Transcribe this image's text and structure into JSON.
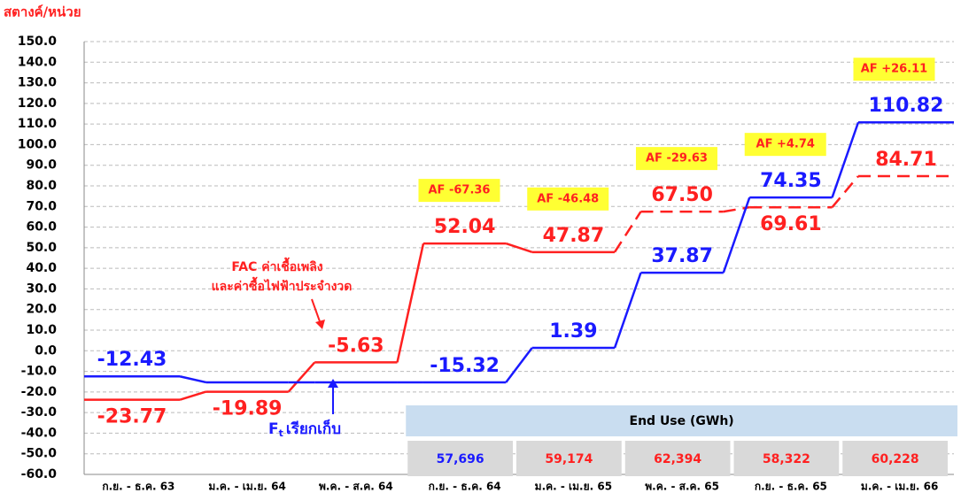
{
  "chart_data": {
    "type": "step-line",
    "y_axis_label": "สตางค์/หน่วย",
    "categories": [
      "ก.ย. - ธ.ค. 63",
      "ม.ค. - เม.ย. 64",
      "พ.ค. - ส.ค. 64",
      "ก.ย. - ธ.ค. 64",
      "ม.ค. - เม.ย. 65",
      "พ.ค. - ส.ค. 65",
      "ก.ย. - ธ.ค. 65",
      "ม.ค. - เม.ย. 66"
    ],
    "series": [
      {
        "name": "FAC ค่าเชื้อเพลิง และค่าซื้อไฟฟ้าประจำงวด",
        "color": "#ff2020",
        "dash_from": 5,
        "values": [
          -23.77,
          -19.89,
          -5.63,
          52.04,
          47.87,
          67.5,
          69.61,
          84.71
        ],
        "value_labels": [
          "-23.77",
          "-19.89",
          "-5.63",
          "52.04",
          "47.87",
          "67.50",
          "69.61",
          "84.71"
        ]
      },
      {
        "name": "เรียกเก็บ",
        "color": "#1a1aff",
        "values": [
          -12.43,
          -15.32,
          -15.32,
          -15.32,
          1.39,
          37.87,
          74.35,
          110.82
        ],
        "value_labels": [
          "-12.43",
          null,
          null,
          "-15.32",
          "1.39",
          "37.87",
          "74.35",
          "110.82"
        ]
      }
    ],
    "ft_symbol": {
      "main": "F",
      "sub": "t"
    },
    "fac_annotation": [
      "FAC ค่าเชื้อเพลิง",
      "และค่าซื้อไฟฟ้าประจำงวด"
    ],
    "af_labels": [
      null,
      null,
      null,
      "AF -67.36",
      "AF -46.48",
      "AF -29.63",
      "AF +4.74",
      "AF +26.11"
    ],
    "end_use": {
      "title": "End Use (GWh)",
      "cells": [
        "57,696",
        "59,174",
        "62,394",
        "58,322",
        "60,228"
      ]
    },
    "ylim": [
      -60,
      150
    ],
    "yticks": [
      {
        "value": -60,
        "label": "-60.0"
      },
      {
        "value": -50,
        "label": "-50.0"
      },
      {
        "value": -40,
        "label": "-40.0"
      },
      {
        "value": -30,
        "label": "-30.0"
      },
      {
        "value": -20,
        "label": "-20.0"
      },
      {
        "value": -10,
        "label": "-10.0"
      },
      {
        "value": 0,
        "label": "0.0"
      },
      {
        "value": 10,
        "label": "10.0"
      },
      {
        "value": 20,
        "label": "20.0"
      },
      {
        "value": 30,
        "label": "30.0"
      },
      {
        "value": 40,
        "label": "40.0"
      },
      {
        "value": 50,
        "label": "50.0"
      },
      {
        "value": 60,
        "label": "60.0"
      },
      {
        "value": 70,
        "label": "70.0"
      },
      {
        "value": 80,
        "label": "80.0"
      },
      {
        "value": 90,
        "label": "90.0"
      },
      {
        "value": 100,
        "label": "100.0"
      },
      {
        "value": 110,
        "label": "110.0"
      },
      {
        "value": 120,
        "label": "120.0"
      },
      {
        "value": 130,
        "label": "130.0"
      },
      {
        "value": 140,
        "label": "140.0"
      },
      {
        "value": 150,
        "label": "150.0"
      }
    ],
    "grid": true
  }
}
